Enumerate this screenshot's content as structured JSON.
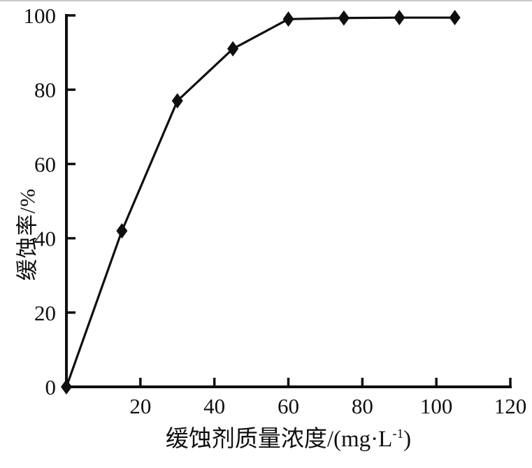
{
  "chart_data": {
    "type": "line",
    "title": "",
    "ylabel": "缓蚀率/%",
    "xlabel_text": "缓蚀剂质量浓度/(mg·L⁻¹)",
    "xlabel": {
      "prefix": "缓蚀剂质量浓度/(mg·L",
      "superscript": "-1",
      "suffix": ")"
    },
    "x": [
      0,
      15,
      30,
      45,
      60,
      75,
      90,
      105
    ],
    "y": [
      0,
      42,
      77,
      91,
      99,
      99.3,
      99.4,
      99.4
    ],
    "xlim": [
      0,
      120
    ],
    "ylim": [
      0,
      100
    ],
    "xticks": [
      20,
      40,
      60,
      80,
      100,
      120
    ],
    "yticks": [
      0,
      20,
      40,
      60,
      80,
      100
    ],
    "marker": "filled-diamond",
    "grid": false,
    "legend": false,
    "line_color": "#0f0f0f",
    "axis_color": "#0f0f0f",
    "background": "#ffffff"
  }
}
